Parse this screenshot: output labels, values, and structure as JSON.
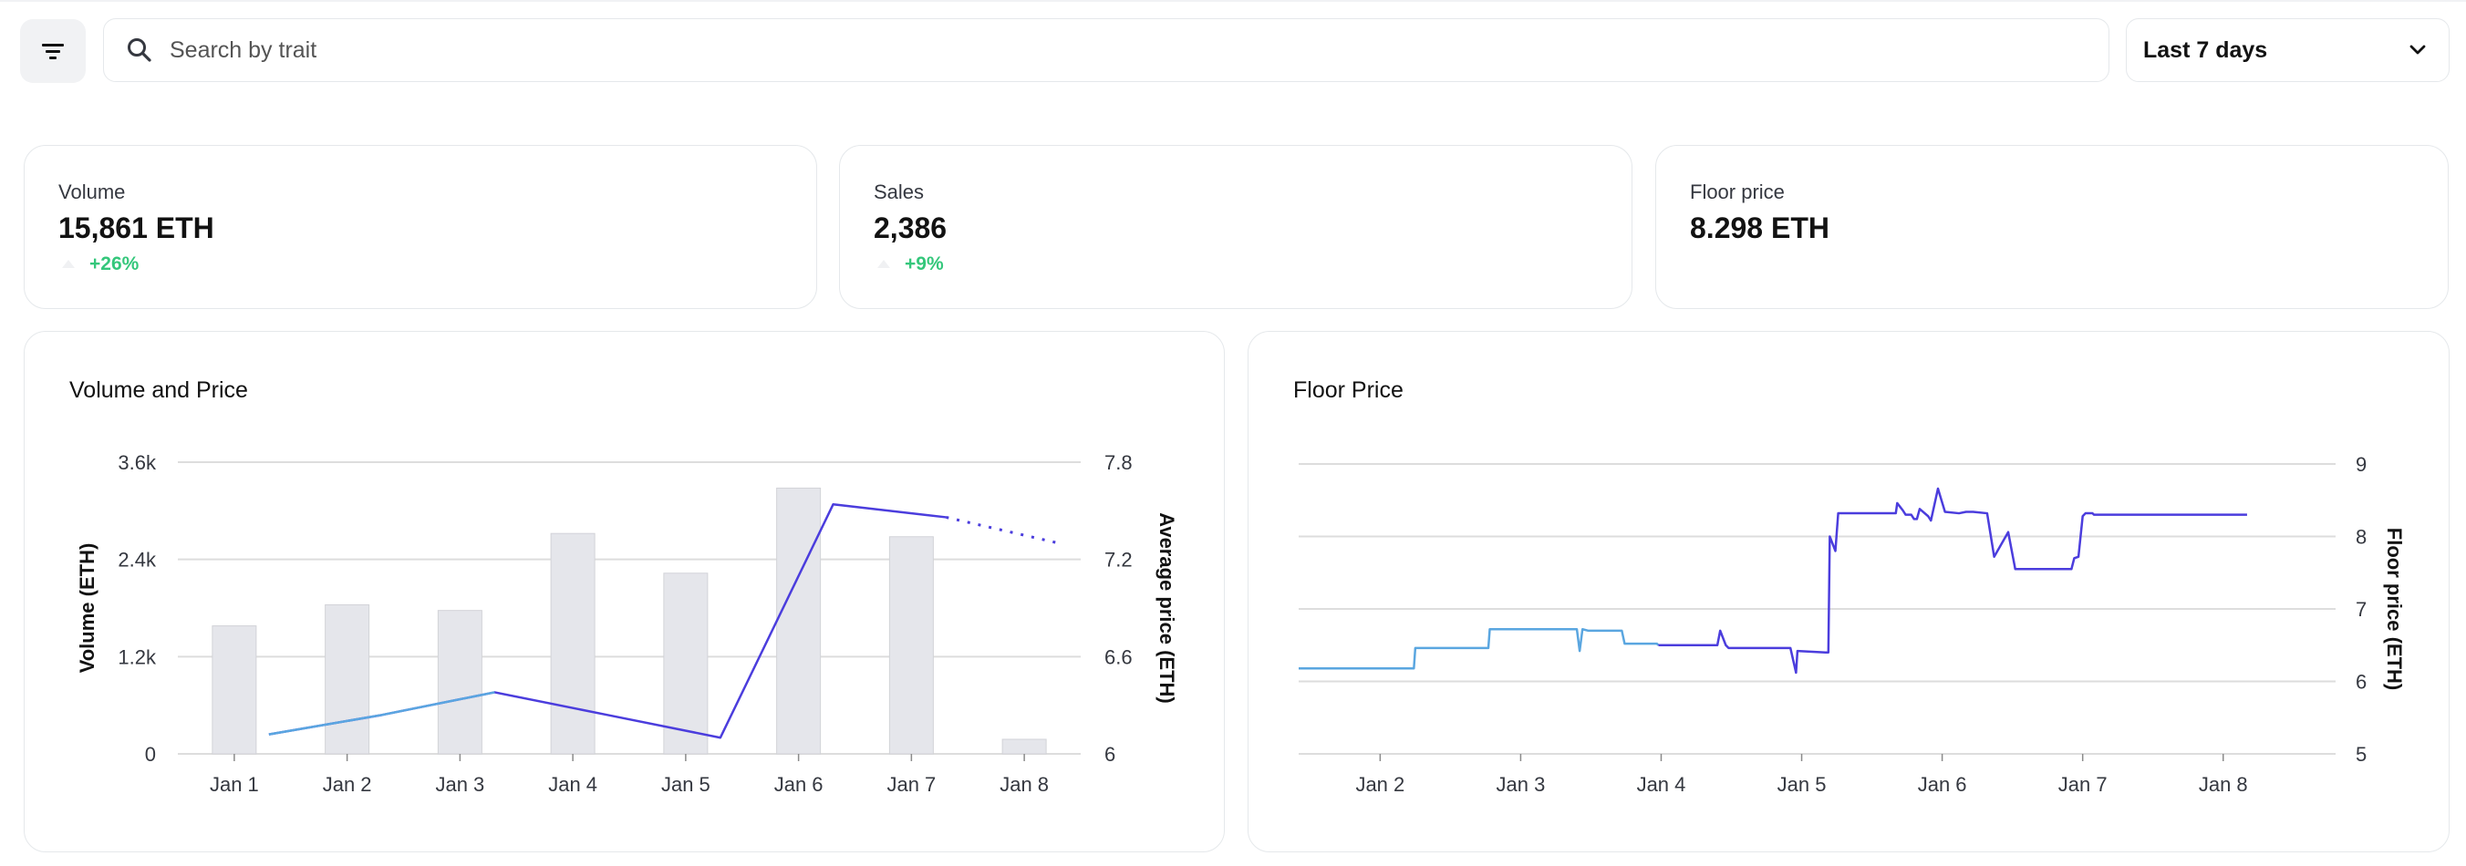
{
  "toolbar": {
    "search_placeholder": "Search by trait",
    "time_range": "Last 7 days"
  },
  "stats": [
    {
      "title": "Volume",
      "value": "15,861 ETH",
      "change": "+26%"
    },
    {
      "title": "Sales",
      "value": "2,386",
      "change": "+9%"
    },
    {
      "title": "Floor price",
      "value": "8.298 ETH",
      "change": ""
    }
  ],
  "colors": {
    "accent": "#4b3ddd",
    "accent_light": "#5aa6e0",
    "bar_fill": "#e5e6eb",
    "positive": "#34c77b",
    "grid": "#dddddd"
  },
  "chart_data": [
    {
      "type": "bar",
      "title": "Volume and Price",
      "x": [
        "Jan 1",
        "Jan 2",
        "Jan 3",
        "Jan 4",
        "Jan 5",
        "Jan 6",
        "Jan 7",
        "Jan 8"
      ],
      "xlabel": "",
      "ylabel": "Volume (ETH)",
      "y2label": "Average price (ETH)",
      "ylim": [
        0,
        3600
      ],
      "y2lim": [
        6,
        7.8
      ],
      "yticks": [
        "0",
        "1.2k",
        "2.4k",
        "3.6k"
      ],
      "y2ticks": [
        "6",
        "6.6",
        "7.2",
        "7.8"
      ],
      "grid": true,
      "series": [
        {
          "type": "bar",
          "values": [
            1580,
            1840,
            1770,
            2720,
            2230,
            3280,
            2680,
            180
          ]
        },
        {
          "type": "line",
          "values": [
            6.12,
            6.24,
            6.38,
            6.24,
            6.1,
            7.54,
            7.46,
            7.3
          ]
        }
      ]
    },
    {
      "type": "line",
      "title": "Floor Price",
      "x": [
        "Jan 2",
        "Jan 3",
        "Jan 4",
        "Jan 5",
        "Jan 6",
        "Jan 7",
        "Jan 8"
      ],
      "xlabel": "",
      "ylabel": "Floor price (ETH)",
      "ylim": [
        5,
        9
      ],
      "yticks": [
        "5",
        "6",
        "7",
        "8",
        "9"
      ],
      "grid": true,
      "series": [
        {
          "x": [
            0.0,
            0.82,
            0.83,
            1.35,
            1.36,
            1.98,
            2.0,
            2.02,
            2.06,
            2.3,
            2.32,
            2.55,
            2.56,
            2.98,
            3.0,
            3.04,
            3.06,
            3.5,
            3.54,
            3.55,
            3.75,
            3.77,
            3.78,
            3.82,
            3.84,
            4.25,
            4.26,
            4.3,
            4.32,
            4.36,
            4.38,
            4.4,
            4.42,
            4.48,
            4.5,
            4.55,
            4.6,
            4.7,
            4.75,
            4.8,
            4.9,
            4.95,
            5.05,
            5.1,
            5.5,
            5.52,
            5.55,
            5.58,
            5.6,
            5.65,
            5.66,
            5.68,
            5.72,
            5.74,
            5.9,
            6.2,
            6.22,
            6.5,
            6.55,
            6.75
          ],
          "y": [
            6.18,
            6.18,
            6.46,
            6.46,
            6.72,
            6.72,
            6.42,
            6.72,
            6.7,
            6.7,
            6.52,
            6.52,
            6.5,
            6.5,
            6.7,
            6.5,
            6.46,
            6.46,
            6.12,
            6.42,
            6.4,
            6.4,
            8.0,
            7.8,
            8.32,
            8.32,
            8.46,
            8.36,
            8.3,
            8.3,
            8.24,
            8.24,
            8.38,
            8.28,
            8.22,
            8.66,
            8.34,
            8.32,
            8.34,
            8.34,
            8.32,
            7.72,
            8.06,
            7.55,
            7.55,
            7.7,
            7.72,
            8.28,
            8.32,
            8.32,
            8.3,
            8.3,
            8.3,
            8.3,
            8.3,
            8.3,
            8.3,
            8.3,
            8.3,
            8.3
          ]
        }
      ]
    }
  ]
}
